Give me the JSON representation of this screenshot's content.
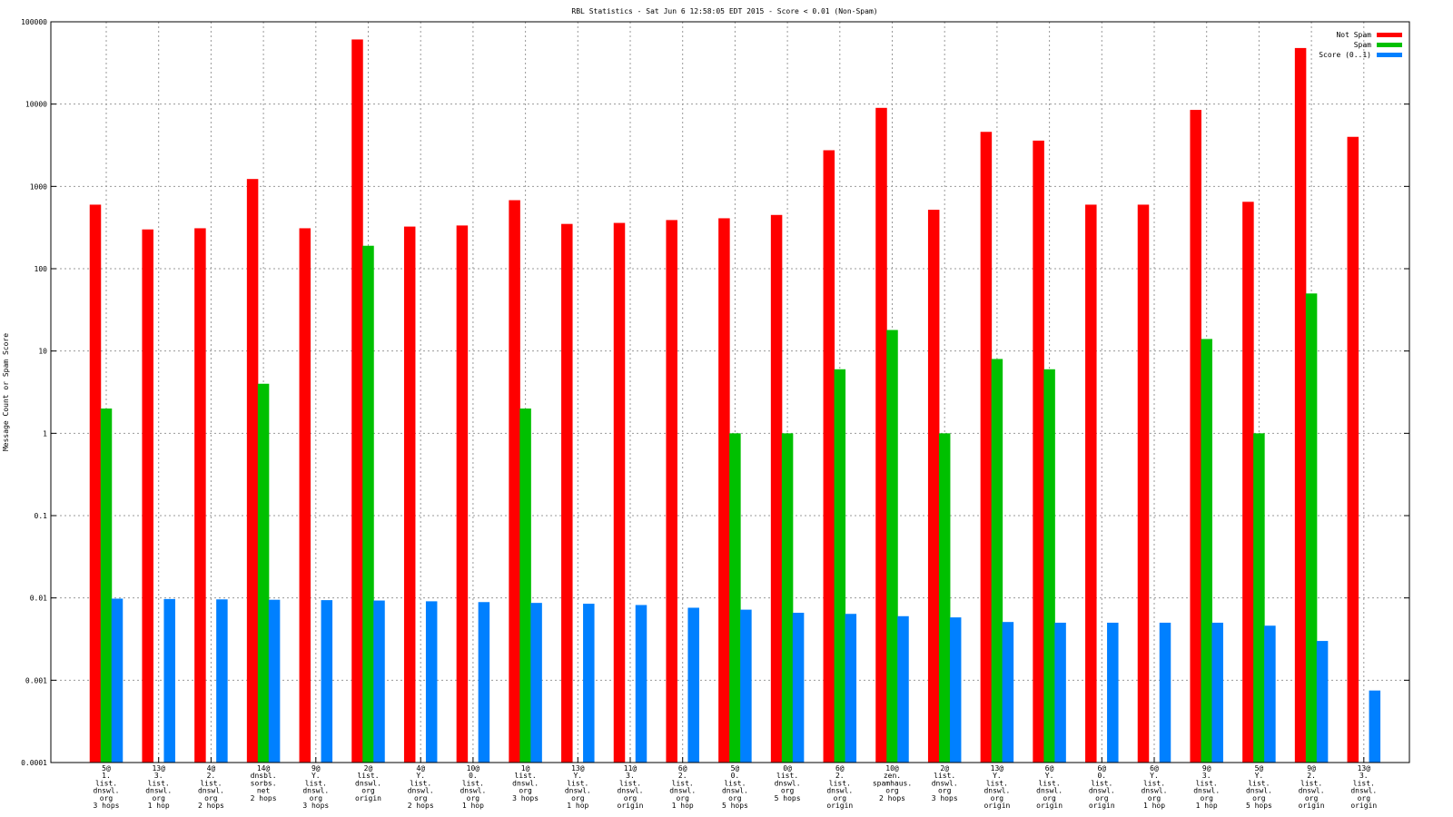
{
  "chart_data": {
    "type": "bar",
    "title": "RBL Statistics - Sat Jun  6 12:58:05 EDT 2015 - Score < 0.01 (Non-Spam)",
    "xlabel": "",
    "ylabel": "Message Count or Spam Score",
    "yscale": "log",
    "ylim": [
      0.0001,
      100000
    ],
    "yticks": [
      "0.0001",
      "0.001",
      "0.01",
      "0.1",
      "1",
      "10",
      "100",
      "1000",
      "10000",
      "100000"
    ],
    "grid": true,
    "legend_position": "top-right",
    "categories": [
      [
        "5@",
        "1.",
        "list.",
        "dnswl.",
        "org",
        "3 hops"
      ],
      [
        "13@",
        "3.",
        "list.",
        "dnswl.",
        "org",
        "1 hop"
      ],
      [
        "4@",
        "2.",
        "list.",
        "dnswl.",
        "org",
        "2 hops"
      ],
      [
        "14@",
        "dnsbl.",
        "sorbs.",
        "net",
        "2 hops"
      ],
      [
        "9@",
        "Y.",
        "list.",
        "dnswl.",
        "org",
        "3 hops"
      ],
      [
        "2@",
        "list.",
        "dnswl.",
        "org",
        "origin"
      ],
      [
        "4@",
        "Y.",
        "list.",
        "dnswl.",
        "org",
        "2 hops"
      ],
      [
        "10@",
        "0.",
        "list.",
        "dnswl.",
        "org",
        "1 hop"
      ],
      [
        "1@",
        "list.",
        "dnswl.",
        "org",
        "3 hops"
      ],
      [
        "13@",
        "Y.",
        "list.",
        "dnswl.",
        "org",
        "1 hop"
      ],
      [
        "11@",
        "3.",
        "list.",
        "dnswl.",
        "org",
        "origin"
      ],
      [
        "6@",
        "2.",
        "list.",
        "dnswl.",
        "org",
        "1 hop"
      ],
      [
        "5@",
        "0.",
        "list.",
        "dnswl.",
        "org",
        "5 hops"
      ],
      [
        "0@",
        "list.",
        "dnswl.",
        "org",
        "5 hops"
      ],
      [
        "6@",
        "2.",
        "list.",
        "dnswl.",
        "org",
        "origin"
      ],
      [
        "10@",
        "zen.",
        "spamhaus.",
        "org",
        "2 hops"
      ],
      [
        "2@",
        "list.",
        "dnswl.",
        "org",
        "3 hops"
      ],
      [
        "13@",
        "Y.",
        "list.",
        "dnswl.",
        "org",
        "origin"
      ],
      [
        "6@",
        "Y.",
        "list.",
        "dnswl.",
        "org",
        "origin"
      ],
      [
        "6@",
        "0.",
        "list.",
        "dnswl.",
        "org",
        "origin"
      ],
      [
        "6@",
        "Y.",
        "list.",
        "dnswl.",
        "org",
        "1 hop"
      ],
      [
        "9@",
        "3.",
        "list.",
        "dnswl.",
        "org",
        "1 hop"
      ],
      [
        "5@",
        "Y.",
        "list.",
        "dnswl.",
        "org",
        "5 hops"
      ],
      [
        "9@",
        "2.",
        "list.",
        "dnswl.",
        "org",
        "origin"
      ],
      [
        "13@",
        "3.",
        "list.",
        "dnswl.",
        "org",
        "origin"
      ]
    ],
    "series": [
      {
        "name": "Not Spam",
        "color": "#ff0000",
        "values": [
          600,
          300,
          310,
          1230,
          310,
          61000,
          325,
          335,
          680,
          350,
          360,
          390,
          410,
          450,
          2750,
          9000,
          520,
          4600,
          3600,
          600,
          600,
          8500,
          650,
          48000,
          4000
        ]
      },
      {
        "name": "Spam",
        "color": "#00c000",
        "values": [
          2,
          0,
          0,
          4,
          0,
          190,
          0,
          0,
          2,
          0,
          0,
          0,
          1,
          1,
          6,
          18,
          1,
          8,
          6,
          0,
          0,
          14,
          1,
          50,
          0
        ]
      },
      {
        "name": "Score (0..1)",
        "color": "#0080ff",
        "values": [
          0.0098,
          0.0097,
          0.0096,
          0.0095,
          0.0094,
          0.0093,
          0.0091,
          0.0089,
          0.0087,
          0.0085,
          0.0082,
          0.0076,
          0.0072,
          0.0066,
          0.0064,
          0.006,
          0.0058,
          0.0051,
          0.005,
          0.005,
          0.005,
          0.005,
          0.0046,
          0.003,
          0.00075
        ]
      }
    ]
  }
}
